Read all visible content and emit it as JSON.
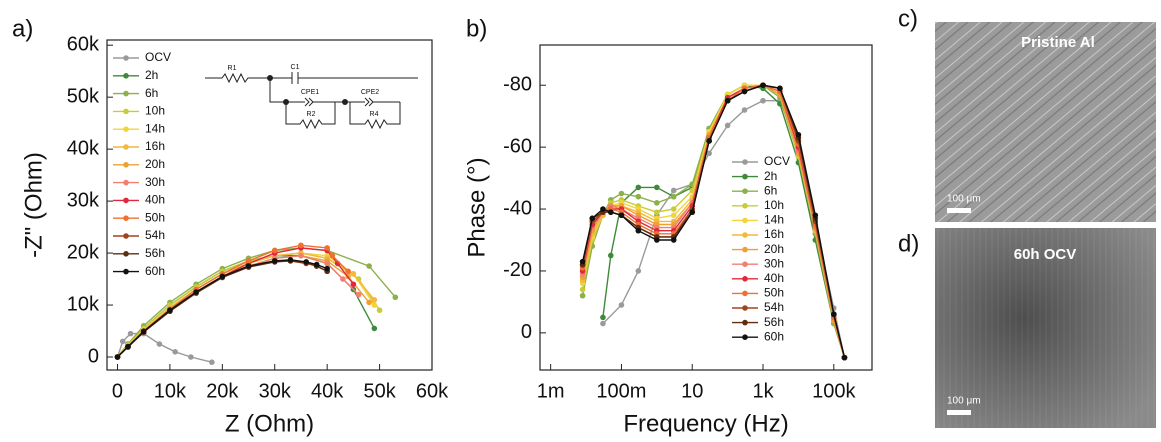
{
  "panels": {
    "a": "a)",
    "b": "b)",
    "c": "c)",
    "d": "d)"
  },
  "circuit": [
    "R1",
    "C1",
    "CPE1",
    "R2",
    "CPE2",
    "R4"
  ],
  "images": [
    {
      "caption": "Pristine Al",
      "scale": "100 μm"
    },
    {
      "caption": "60h OCV",
      "scale": "100 μm"
    }
  ],
  "chart_data": [
    {
      "type": "line",
      "x_label": "Z (Ohm)",
      "y_label": "-Z\" (Ohm)",
      "legend": "upper left",
      "xlim": [
        -2000,
        60000
      ],
      "ylim": [
        -2500,
        61000
      ],
      "xticks": [
        {
          "value": 0,
          "label": "0"
        },
        {
          "value": 10000,
          "label": "10k"
        },
        {
          "value": 20000,
          "label": "20k"
        },
        {
          "value": 30000,
          "label": "30k"
        },
        {
          "value": 40000,
          "label": "40k"
        },
        {
          "value": 50000,
          "label": "50k"
        },
        {
          "value": 60000,
          "label": "60k"
        }
      ],
      "yticks": [
        {
          "value": 0,
          "label": "0"
        },
        {
          "value": 10000,
          "label": "10k"
        },
        {
          "value": 20000,
          "label": "20k"
        },
        {
          "value": 30000,
          "label": "30k"
        },
        {
          "value": 40000,
          "label": "40k"
        },
        {
          "value": 50000,
          "label": "50k"
        },
        {
          "value": 60000,
          "label": "60k"
        }
      ],
      "series": [
        {
          "name": "OCV",
          "color": "#9a9a9a",
          "x": [
            0,
            1000,
            2500,
            5000,
            8000,
            11000,
            14000,
            18000
          ],
          "values": [
            0,
            3000,
            4500,
            4500,
            2500,
            1000,
            0,
            -1000
          ]
        },
        {
          "name": "2h",
          "color": "#3f8a3a",
          "x": [
            0,
            2000,
            5000,
            10000,
            15000,
            20000,
            25000,
            30000,
            35000,
            40000,
            45000,
            49000
          ],
          "values": [
            0,
            2500,
            5500,
            10000,
            13500,
            16500,
            18500,
            19500,
            19500,
            18000,
            13000,
            5500
          ]
        },
        {
          "name": "6h",
          "color": "#8cb04a",
          "x": [
            0,
            2000,
            5000,
            10000,
            15000,
            20000,
            25000,
            30000,
            35000,
            40000,
            48000,
            53000
          ],
          "values": [
            0,
            2500,
            6000,
            10500,
            14000,
            17000,
            19000,
            20500,
            21000,
            20500,
            17500,
            11500
          ]
        },
        {
          "name": "10h",
          "color": "#c9cc3a",
          "x": [
            0,
            2000,
            5000,
            10000,
            15000,
            20000,
            25000,
            30000,
            35000,
            40000,
            46000,
            50000
          ],
          "values": [
            0,
            2300,
            5500,
            10000,
            13500,
            16500,
            18500,
            19500,
            20000,
            19000,
            15000,
            9000
          ]
        },
        {
          "name": "14h",
          "color": "#f2d43c",
          "x": [
            0,
            2000,
            5000,
            10000,
            15000,
            20000,
            25000,
            30000,
            35000,
            40000,
            45000,
            49000
          ],
          "values": [
            0,
            2200,
            5200,
            9500,
            13000,
            16000,
            18000,
            19500,
            20000,
            19500,
            16000,
            10000
          ]
        },
        {
          "name": "16h",
          "color": "#f2b93c",
          "x": [
            0,
            2000,
            5000,
            10000,
            15000,
            20000,
            25000,
            30000,
            35000,
            40000,
            45000,
            49000
          ],
          "values": [
            0,
            2200,
            5000,
            9500,
            13000,
            16000,
            18000,
            19500,
            20000,
            19000,
            16000,
            11000
          ]
        },
        {
          "name": "20h",
          "color": "#f0a032",
          "x": [
            0,
            2000,
            5000,
            10000,
            15000,
            20000,
            25000,
            30000,
            35000,
            40000,
            44000,
            48000
          ],
          "values": [
            0,
            2000,
            5000,
            9000,
            12500,
            15500,
            17500,
            19000,
            19500,
            18500,
            15500,
            10500
          ]
        },
        {
          "name": "30h",
          "color": "#f08070",
          "x": [
            0,
            2000,
            5000,
            10000,
            15000,
            20000,
            25000,
            30000,
            35000,
            40000,
            43000,
            46000
          ],
          "values": [
            0,
            2000,
            5000,
            9000,
            12500,
            15500,
            17500,
            19000,
            19500,
            18000,
            15000,
            12000
          ]
        },
        {
          "name": "40h",
          "color": "#e0283c",
          "x": [
            0,
            2000,
            5000,
            10000,
            15000,
            20000,
            25000,
            30000,
            35000,
            40000,
            42000,
            45000
          ],
          "values": [
            0,
            2000,
            4800,
            9000,
            12500,
            15500,
            18000,
            20000,
            21000,
            20500,
            18000,
            14000
          ]
        },
        {
          "name": "50h",
          "color": "#f07030",
          "x": [
            0,
            2000,
            5000,
            10000,
            15000,
            20000,
            25000,
            30000,
            35000,
            40000,
            41000,
            44000
          ],
          "values": [
            0,
            2000,
            5000,
            9200,
            13000,
            16000,
            18500,
            20500,
            21500,
            21000,
            19500,
            16500
          ]
        },
        {
          "name": "54h",
          "color": "#a04420",
          "x": [
            0,
            2000,
            5000,
            10000,
            15000,
            20000,
            25000,
            30000,
            33000,
            36000,
            38000,
            40000
          ],
          "values": [
            0,
            2000,
            5000,
            9000,
            12500,
            15500,
            17500,
            18500,
            18500,
            18000,
            17500,
            16500
          ]
        },
        {
          "name": "56h",
          "color": "#5e2e10",
          "x": [
            0,
            2000,
            5000,
            10000,
            15000,
            20000,
            25000,
            30000,
            33000,
            36000,
            38000,
            40000
          ],
          "values": [
            0,
            1900,
            4800,
            8800,
            12300,
            15300,
            17300,
            18300,
            18500,
            18200,
            17500,
            16500
          ]
        },
        {
          "name": "60h",
          "color": "#111111",
          "x": [
            0,
            2000,
            5000,
            10000,
            15000,
            20000,
            25000,
            30000,
            33000,
            36000,
            38000,
            40000
          ],
          "values": [
            0,
            2000,
            4900,
            9000,
            12500,
            15500,
            17500,
            18500,
            18700,
            18300,
            17800,
            17000
          ]
        }
      ]
    },
    {
      "type": "line",
      "x_label": "Frequency (Hz)",
      "y_label": "Phase (°)",
      "legend": "lower right",
      "xlog": true,
      "xlim": [
        0.0005,
        1200000
      ],
      "ylim": [
        12,
        -93
      ],
      "xticks": [
        {
          "value": 0.001,
          "label": "1m"
        },
        {
          "value": 0.1,
          "label": "100m"
        },
        10,
        {
          "value": 1000,
          "label": "1k"
        },
        {
          "value": 100000,
          "label": "100k"
        }
      ],
      "yticks": [
        0,
        -20,
        -40,
        -60,
        -80
      ],
      "series": [
        {
          "name": "OCV",
          "color": "#9a9a9a",
          "x": [
            0.03,
            0.1,
            0.3,
            1,
            3,
            10,
            30,
            100,
            300,
            1000,
            3000,
            10000,
            30000,
            100000,
            200000
          ],
          "values": [
            -3,
            -9,
            -20,
            -38,
            -46,
            -48,
            -58,
            -67,
            -72,
            -75,
            -75,
            -60,
            -35,
            -8,
            8
          ]
        },
        {
          "name": "2h",
          "color": "#3f8a3a",
          "x": [
            0.03,
            0.05,
            0.1,
            0.3,
            1,
            3,
            10,
            30,
            100,
            300,
            1000,
            3000,
            10000,
            30000,
            100000,
            200000
          ],
          "values": [
            -5,
            -25,
            -42,
            -47,
            -47,
            -44,
            -47,
            -66,
            -77,
            -80,
            -79,
            -74,
            -55,
            -30,
            -3,
            8
          ]
        },
        {
          "name": "6h",
          "color": "#8cb04a",
          "x": [
            0.008,
            0.015,
            0.03,
            0.05,
            0.1,
            0.3,
            1,
            3,
            10,
            30,
            100,
            300,
            1000,
            3000,
            10000,
            30000,
            100000,
            200000
          ],
          "values": [
            -12,
            -28,
            -38,
            -43,
            -45,
            -44,
            -42,
            -44,
            -48,
            -66,
            -77,
            -80,
            -80,
            -76,
            -57,
            -32,
            -3,
            8
          ]
        },
        {
          "name": "10h",
          "color": "#c9cc3a",
          "x": [
            0.008,
            0.015,
            0.03,
            0.05,
            0.1,
            0.3,
            1,
            3,
            10,
            30,
            100,
            300,
            1000,
            3000,
            10000,
            30000,
            100000,
            200000
          ],
          "values": [
            -14,
            -30,
            -38,
            -42,
            -43,
            -41,
            -39,
            -40,
            -46,
            -65,
            -77,
            -80,
            -80,
            -77,
            -57,
            -33,
            -4,
            8
          ]
        },
        {
          "name": "14h",
          "color": "#f2d43c",
          "x": [
            0.008,
            0.015,
            0.03,
            0.05,
            0.1,
            0.3,
            1,
            3,
            10,
            30,
            100,
            300,
            1000,
            3000,
            10000,
            30000,
            100000,
            200000
          ],
          "values": [
            -16,
            -31,
            -38,
            -41,
            -42,
            -40,
            -37,
            -38,
            -44,
            -65,
            -77,
            -80,
            -80,
            -77,
            -58,
            -33,
            -4,
            8
          ]
        },
        {
          "name": "16h",
          "color": "#f2b93c",
          "x": [
            0.008,
            0.015,
            0.03,
            0.05,
            0.1,
            0.3,
            1,
            3,
            10,
            30,
            100,
            300,
            1000,
            3000,
            10000,
            30000,
            100000,
            200000
          ],
          "values": [
            -17,
            -32,
            -38,
            -41,
            -41,
            -39,
            -36,
            -36,
            -43,
            -64,
            -76,
            -79,
            -80,
            -77,
            -58,
            -33,
            -4,
            8
          ]
        },
        {
          "name": "20h",
          "color": "#f0a032",
          "x": [
            0.008,
            0.015,
            0.03,
            0.05,
            0.1,
            0.3,
            1,
            3,
            10,
            30,
            100,
            300,
            1000,
            3000,
            10000,
            30000,
            100000,
            200000
          ],
          "values": [
            -18,
            -33,
            -39,
            -41,
            -41,
            -38,
            -35,
            -35,
            -42,
            -64,
            -76,
            -79,
            -80,
            -77,
            -58,
            -34,
            -4,
            8
          ]
        },
        {
          "name": "30h",
          "color": "#f08070",
          "x": [
            0.008,
            0.015,
            0.03,
            0.05,
            0.1,
            0.3,
            1,
            3,
            10,
            30,
            100,
            300,
            1000,
            3000,
            10000,
            30000,
            100000,
            200000
          ],
          "values": [
            -19,
            -34,
            -39,
            -41,
            -40,
            -37,
            -34,
            -34,
            -42,
            -63,
            -76,
            -79,
            -80,
            -78,
            -59,
            -34,
            -5,
            8
          ]
        },
        {
          "name": "40h",
          "color": "#e0283c",
          "x": [
            0.008,
            0.015,
            0.03,
            0.05,
            0.1,
            0.3,
            1,
            3,
            10,
            30,
            100,
            300,
            1000,
            3000,
            10000,
            30000,
            100000,
            200000
          ],
          "values": [
            -20,
            -35,
            -39,
            -40,
            -40,
            -36,
            -33,
            -33,
            -41,
            -63,
            -76,
            -79,
            -80,
            -78,
            -60,
            -35,
            -5,
            8
          ]
        },
        {
          "name": "50h",
          "color": "#f07030",
          "x": [
            0.008,
            0.015,
            0.03,
            0.05,
            0.1,
            0.3,
            1,
            3,
            10,
            30,
            100,
            300,
            1000,
            3000,
            10000,
            30000,
            100000,
            200000
          ],
          "values": [
            -21,
            -36,
            -39,
            -40,
            -39,
            -35,
            -32,
            -32,
            -40,
            -63,
            -75,
            -79,
            -80,
            -78,
            -61,
            -35,
            -5,
            8
          ]
        },
        {
          "name": "54h",
          "color": "#a04420",
          "x": [
            0.008,
            0.015,
            0.03,
            0.05,
            0.1,
            0.3,
            1,
            3,
            10,
            30,
            100,
            300,
            1000,
            3000,
            10000,
            30000,
            100000,
            200000
          ],
          "values": [
            -22,
            -36,
            -39,
            -39,
            -38,
            -34,
            -31,
            -31,
            -40,
            -62,
            -75,
            -78,
            -80,
            -79,
            -62,
            -36,
            -6,
            8
          ]
        },
        {
          "name": "56h",
          "color": "#5e2e10",
          "x": [
            0.008,
            0.015,
            0.03,
            0.05,
            0.1,
            0.3,
            1,
            3,
            10,
            30,
            100,
            300,
            1000,
            3000,
            10000,
            30000,
            100000,
            200000
          ],
          "values": [
            -22,
            -37,
            -39,
            -39,
            -38,
            -34,
            -31,
            -31,
            -39,
            -62,
            -75,
            -78,
            -80,
            -79,
            -63,
            -37,
            -6,
            8
          ]
        },
        {
          "name": "60h",
          "color": "#111111",
          "x": [
            0.008,
            0.015,
            0.03,
            0.05,
            0.1,
            0.3,
            1,
            3,
            10,
            30,
            100,
            300,
            1000,
            3000,
            10000,
            30000,
            100000,
            200000
          ],
          "values": [
            -23,
            -37,
            -40,
            -39,
            -38,
            -33,
            -30,
            -30,
            -39,
            -62,
            -75,
            -78,
            -80,
            -79,
            -64,
            -38,
            -6,
            8
          ]
        }
      ]
    }
  ]
}
